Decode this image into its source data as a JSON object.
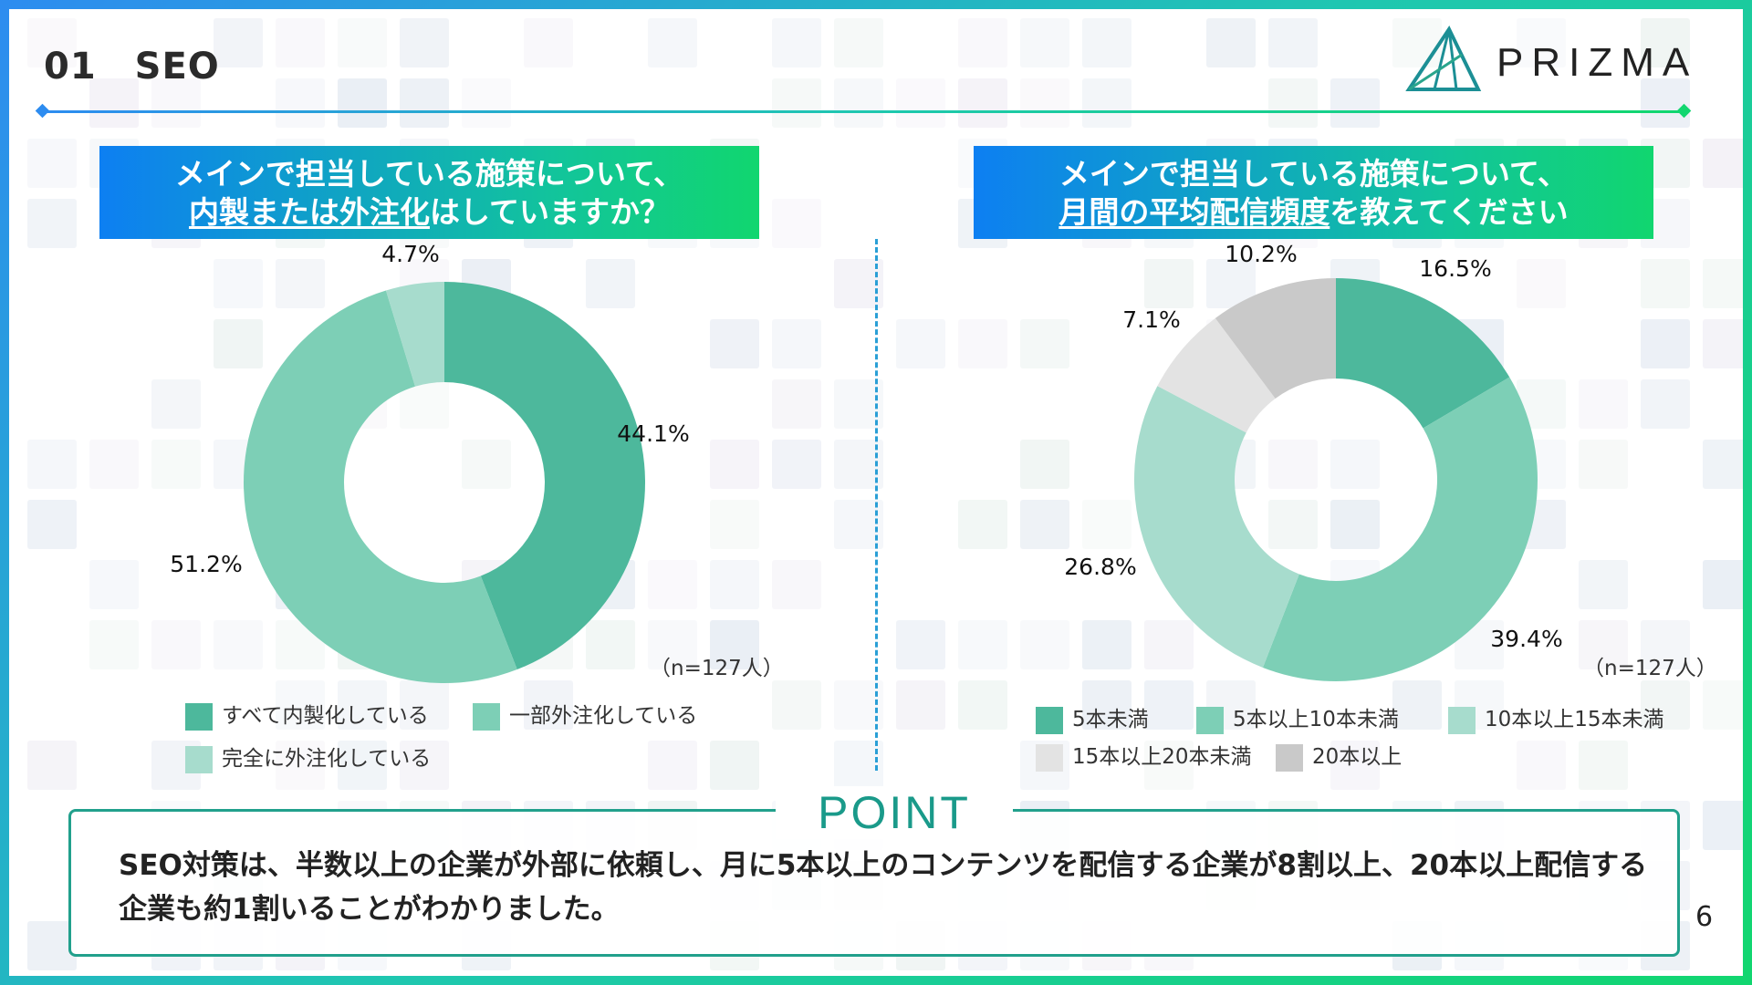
{
  "header": {
    "section_number": "01",
    "section_title": "SEO",
    "brand": "PRIZMA"
  },
  "colors": {
    "accent_gradient": [
      "#0d7ff2",
      "#12c59a",
      "#11d66f"
    ],
    "point_border": "#21a08c"
  },
  "left": {
    "question_line1": "メインで担当している施策について、",
    "question_line2_underlined": "内製または外注化",
    "question_line2_rest": "はしていますか？",
    "n_label": "（n=127人）"
  },
  "right": {
    "question_line1": "メインで担当している施策について、",
    "question_line2_underlined": "月間の平均配信頻度",
    "question_line2_rest": "を教えてください",
    "n_label": "（n=127人）"
  },
  "chart_data": [
    {
      "type": "pie",
      "donut": true,
      "categories": [
        "すべて内製化している",
        "一部外注化している",
        "完全に外注化している"
      ],
      "values": [
        44.1,
        51.2,
        4.7
      ],
      "data_labels": [
        "44.1%",
        "51.2%",
        "4.7%"
      ],
      "colors": [
        "#4db89c",
        "#7dcfb6",
        "#a7dccd"
      ],
      "legend": "bottom",
      "start_angle": "12 o'clock",
      "direction": "clockwise"
    },
    {
      "type": "pie",
      "donut": true,
      "categories": [
        "5本未満",
        "5本以上10本未満",
        "10本以上15本未満",
        "15本以上20本未満",
        "20本以上"
      ],
      "values": [
        16.5,
        39.4,
        26.8,
        7.1,
        10.2
      ],
      "data_labels": [
        "16.5%",
        "39.4%",
        "26.8%",
        "7.1%",
        "10.2%"
      ],
      "colors": [
        "#4db89c",
        "#7dcfb6",
        "#a7dccd",
        "#e3e3e3",
        "#c9c9c9"
      ],
      "legend": "bottom",
      "start_angle": "12 o'clock",
      "direction": "clockwise"
    }
  ],
  "point": {
    "title": "POINT",
    "text": "SEO対策は、半数以上の企業が外部に依頼し、月に5本以上のコンテンツを配信する企業が8割以上、20本以上配信する企業も約1割いることがわかりました。"
  },
  "page_number": "6"
}
